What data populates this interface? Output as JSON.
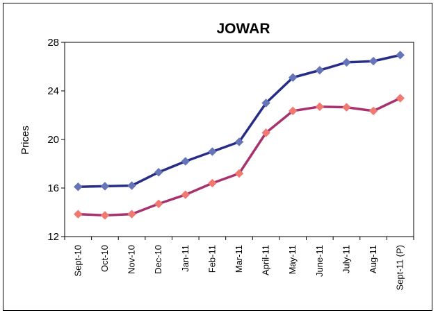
{
  "chart_data": {
    "type": "line",
    "title": "JOWAR",
    "xlabel": "",
    "ylabel": "Prices",
    "ylim": [
      12,
      28
    ],
    "yticks": [
      12,
      16,
      20,
      24,
      28
    ],
    "grid": false,
    "legend": "none",
    "categories": [
      "Sept-10",
      "Oct-10",
      "Nov-10",
      "Dec-10",
      "Jan-11",
      "Feb-11",
      "Mar-11",
      "April-11",
      "May-11",
      "June-11",
      "July-11",
      "Aug-11",
      "Sept-11 (P)"
    ],
    "series": [
      {
        "line_color": "#262C87",
        "marker_color": "#6674B8",
        "values": [
          16.1,
          16.15,
          16.2,
          17.3,
          18.2,
          19.0,
          19.8,
          23.0,
          25.1,
          25.7,
          26.35,
          26.45,
          26.95
        ]
      },
      {
        "line_color": "#A8326E",
        "marker_color": "#F07A72",
        "values": [
          13.85,
          13.75,
          13.85,
          14.7,
          15.45,
          16.4,
          17.2,
          20.55,
          22.35,
          22.7,
          22.65,
          22.35,
          23.4
        ]
      }
    ]
  }
}
